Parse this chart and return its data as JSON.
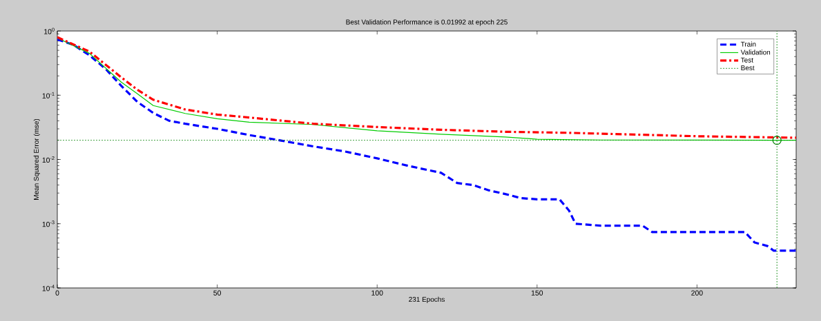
{
  "chart_data": {
    "type": "line",
    "title": "Best Validation Performance is 0.01992 at epoch 225",
    "xlabel": "231 Epochs",
    "ylabel": "Mean Squared Error  (mse)",
    "log": "y",
    "grid": false,
    "legend": "top right",
    "xlim": [
      0,
      231
    ],
    "ylim": [
      0.0001,
      1
    ],
    "xticks": [
      0,
      50,
      100,
      150,
      200
    ],
    "yticks": [
      {
        "value": 0.0001,
        "label": "10$^{-4}$"
      },
      {
        "value": 0.001,
        "label": "10$^{-3}$"
      },
      {
        "value": 0.01,
        "label": "10$^{-2}$"
      },
      {
        "value": 0.1,
        "label": "10$^{-1}$"
      },
      {
        "value": 1,
        "label": "10$^{0}$"
      }
    ],
    "series": [
      {
        "name": "Train",
        "color": "#0000ff",
        "line_style": "dashed",
        "marker": "none",
        "x": [
          0,
          5,
          10,
          15,
          20,
          25,
          30,
          35,
          40,
          50,
          60,
          70,
          80,
          90,
          100,
          110,
          120,
          125,
          130,
          135,
          140,
          145,
          150,
          157,
          160,
          162,
          170,
          183,
          186,
          200,
          215,
          218,
          222,
          224,
          231
        ],
        "values": [
          0.74,
          0.61,
          0.42,
          0.26,
          0.14,
          0.079,
          0.053,
          0.04,
          0.036,
          0.03,
          0.024,
          0.0197,
          0.016,
          0.0133,
          0.0104,
          0.0079,
          0.0062,
          0.0043,
          0.004,
          0.0033,
          0.0029,
          0.0025,
          0.0024,
          0.0024,
          0.0016,
          0.001,
          0.00093,
          0.00093,
          0.00074,
          0.00074,
          0.00074,
          0.00051,
          0.00045,
          0.00038,
          0.00038
        ]
      },
      {
        "name": "Validation",
        "color": "#00cc00",
        "line_style": "solid",
        "marker": "none",
        "x": [
          0,
          10,
          20,
          25,
          30,
          40,
          50,
          60,
          80,
          100,
          120,
          140,
          150,
          170,
          200,
          225,
          231
        ],
        "values": [
          0.78,
          0.45,
          0.16,
          0.106,
          0.069,
          0.052,
          0.043,
          0.038,
          0.035,
          0.028,
          0.0247,
          0.0224,
          0.0207,
          0.0201,
          0.02,
          0.01992,
          0.01992
        ]
      },
      {
        "name": "Test",
        "color": "#ff0000",
        "line_style": "dashdot",
        "marker": "none",
        "x": [
          0,
          10,
          20,
          25,
          30,
          40,
          50,
          60,
          80,
          100,
          120,
          140,
          160,
          200,
          231
        ],
        "values": [
          0.8,
          0.48,
          0.19,
          0.122,
          0.085,
          0.06,
          0.05,
          0.045,
          0.036,
          0.032,
          0.029,
          0.027,
          0.026,
          0.023,
          0.0218
        ]
      },
      {
        "type": "scatter",
        "color": "#008000",
        "marker": "circle",
        "x": [
          225
        ],
        "values": [
          0.01992
        ]
      }
    ],
    "ref_lines": [
      {
        "axis": "y",
        "value": 0.01992,
        "label": "Best",
        "color": "#008000",
        "line_style": "dotted"
      },
      {
        "axis": "x",
        "value": 225,
        "color": "#008000",
        "line_style": "dotted"
      }
    ]
  }
}
